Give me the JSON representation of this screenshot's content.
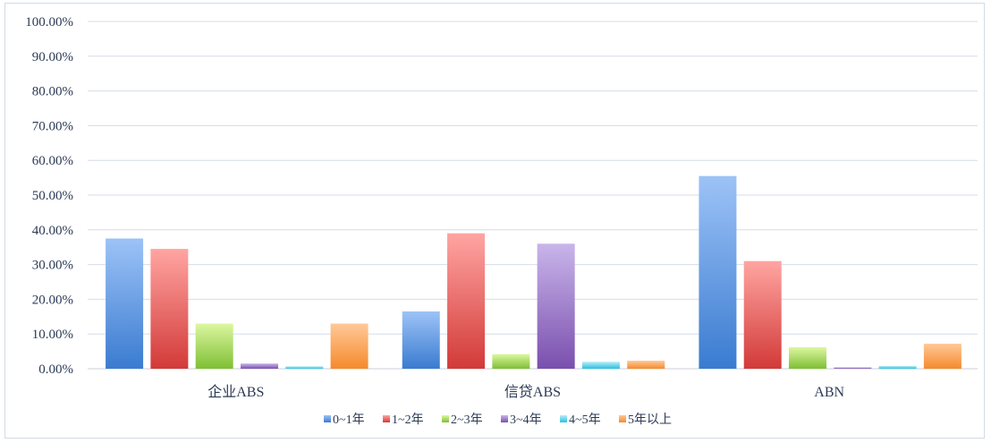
{
  "chart_data": {
    "type": "bar",
    "categories": [
      "企业ABS",
      "信贷ABS",
      "ABN"
    ],
    "series": [
      {
        "name": "0~1年",
        "values": [
          37.5,
          16.5,
          55.5
        ],
        "color_top": "#9dc3f7",
        "color_bottom": "#3a7bd0"
      },
      {
        "name": "1~2年",
        "values": [
          34.5,
          39.0,
          31.0
        ],
        "color_top": "#ffa5a2",
        "color_bottom": "#d23a38"
      },
      {
        "name": "2~3年",
        "values": [
          13.0,
          4.2,
          6.2
        ],
        "color_top": "#dcf7a0",
        "color_bottom": "#7fbf34"
      },
      {
        "name": "3~4年",
        "values": [
          1.5,
          36.0,
          0.3
        ],
        "color_top": "#c9b5ea",
        "color_bottom": "#7a4fae"
      },
      {
        "name": "4~5年",
        "values": [
          0.7,
          2.0,
          0.8
        ],
        "color_top": "#b6eef9",
        "color_bottom": "#2cbfdf"
      },
      {
        "name": "5年以上",
        "values": [
          13.0,
          2.3,
          7.2
        ],
        "color_top": "#ffc998",
        "color_bottom": "#f58a2c"
      }
    ],
    "yticks": [
      "0.00%",
      "10.00%",
      "20.00%",
      "30.00%",
      "40.00%",
      "50.00%",
      "60.00%",
      "70.00%",
      "80.00%",
      "90.00%",
      "100.00%"
    ],
    "ylim": [
      0,
      100
    ],
    "grid": true,
    "legend_position": "bottom"
  }
}
